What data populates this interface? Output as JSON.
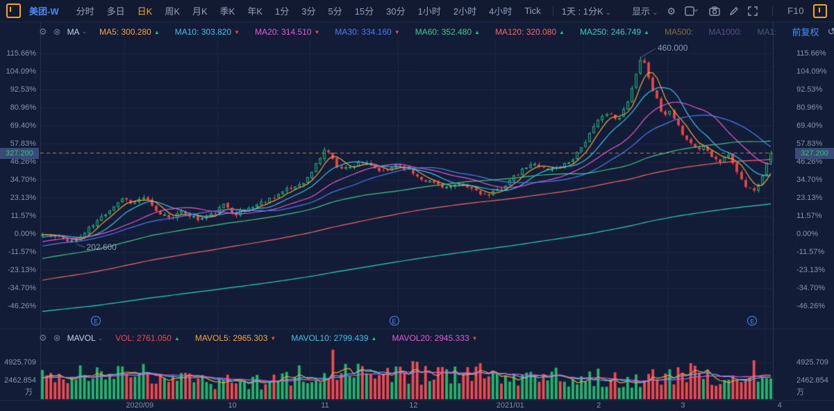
{
  "toolbar": {
    "symbol": "美团-W",
    "periods": [
      "分时",
      "多日",
      "日K",
      "周K",
      "月K",
      "季K",
      "年K",
      "1分",
      "3分",
      "5分",
      "15分",
      "30分",
      "1小时",
      "2小时",
      "4小时",
      "Tick"
    ],
    "active_period": "日K",
    "combo_label": "1天 : 1分K",
    "display_label": "显示",
    "f10_label": "F10"
  },
  "icons": {
    "window_icon": "orange-candle-window",
    "display_dropdown": "chevron-down",
    "settings": "gear",
    "layout": "square-chevron",
    "screenshot": "camera",
    "draw": "pencil",
    "fullscreen": "expand-arrows",
    "undo": "circular-arrow",
    "zoom_out": "minus-circle",
    "zoom_in": "plus-circle",
    "legend_settings": "gear",
    "legend_close": "circle-x",
    "earnings": "circled-E"
  },
  "ma_bar": {
    "name": "MA",
    "items": [
      {
        "label": "MA5",
        "value": "300.280",
        "color": "#f3a341",
        "dir": "up"
      },
      {
        "label": "MA10",
        "value": "303.820",
        "color": "#3fc0e8",
        "dir": "down"
      },
      {
        "label": "MA20",
        "value": "314.510",
        "color": "#e35ad6",
        "dir": "down"
      },
      {
        "label": "MA30",
        "value": "334.160",
        "color": "#4a7df0",
        "dir": "down"
      },
      {
        "label": "MA60",
        "value": "352.480",
        "color": "#3fc98c",
        "dir": "up"
      },
      {
        "label": "MA120",
        "value": "320.080",
        "color": "#ef6a6a",
        "dir": "up"
      },
      {
        "label": "MA250",
        "value": "246.749",
        "color": "#2ed0c4",
        "dir": "up"
      },
      {
        "label": "MA500:",
        "value": "",
        "color": "#7d7045",
        "dir": ""
      },
      {
        "label": "MA1000:",
        "value": "",
        "color": "#585089",
        "dir": ""
      },
      {
        "label": "MA1:",
        "value": "",
        "color": "#49567a",
        "dir": ""
      }
    ],
    "adjust_label": "前复权"
  },
  "vol_bar": {
    "name": "MAVOL",
    "items": [
      {
        "label": "VOL",
        "value": "2761.050",
        "color": "#ef4a4e",
        "dir": "up"
      },
      {
        "label": "MAVOL5",
        "value": "2965.303",
        "color": "#f3a341",
        "dir": "down"
      },
      {
        "label": "MAVOL10",
        "value": "2799.439",
        "color": "#3fc0e8",
        "dir": "up"
      },
      {
        "label": "MAVOL20",
        "value": "2945.333",
        "color": "#e35ad6",
        "dir": "down"
      }
    ]
  },
  "main_axis": {
    "labels": [
      "115.66%",
      "104.09%",
      "92.53%",
      "80.96%",
      "69.40%",
      "57.83%",
      "46.26%",
      "34.70%",
      "23.13%",
      "11.57%",
      "0.00%",
      "-11.57%",
      "-23.13%",
      "-34.70%",
      "-46.26%"
    ],
    "pcts": [
      115.66,
      104.09,
      92.53,
      80.96,
      69.4,
      57.83,
      46.26,
      34.7,
      23.13,
      11.57,
      0.0,
      -11.57,
      -23.13,
      -34.7,
      -46.26
    ],
    "price_tag": "327.200",
    "high_label": "460.000",
    "low_label": "202.600",
    "earnings_glyph": "E"
  },
  "vol_axis": {
    "labels": [
      "4925.709",
      "2462.854"
    ],
    "values": [
      4925.709,
      2462.854
    ],
    "unit": "万"
  },
  "x_axis": {
    "labels": [
      "2020/09",
      "10",
      "11",
      "12",
      "2021/01",
      "2",
      "3",
      "4"
    ]
  },
  "colors": {
    "background": "#131c36",
    "toolbar_bg": "#111a31",
    "grid": "#1b2646",
    "border": "#27335a",
    "up": "#22c07e",
    "down": "#ea4749",
    "axis_text": "#8893b0",
    "accent_orange": "#f5a623",
    "accent_blue": "#4d8af0",
    "price_line_dash": "#c08347",
    "tag_bg": "#3b4b77"
  },
  "chart_data": {
    "type": "candlestick",
    "title": "美团-W 日K 前复权",
    "base_price": 215.3,
    "last_price": 327.2,
    "last_change_pct": 52.0,
    "high_price": 460.0,
    "high_pct": 113.66,
    "low_price": 202.6,
    "low_pct": -5.9,
    "n": 174,
    "seed": 11,
    "start_date": "2020-08-04",
    "noise_pct": 1.5,
    "close_anchors_pct": [
      [
        0,
        0
      ],
      [
        0.02,
        -2.5
      ],
      [
        0.045,
        -4.5
      ],
      [
        0.07,
        6
      ],
      [
        0.095,
        17
      ],
      [
        0.11,
        23
      ],
      [
        0.125,
        20
      ],
      [
        0.14,
        24
      ],
      [
        0.155,
        14
      ],
      [
        0.175,
        11
      ],
      [
        0.195,
        14
      ],
      [
        0.215,
        9
      ],
      [
        0.235,
        13
      ],
      [
        0.25,
        19
      ],
      [
        0.265,
        13
      ],
      [
        0.285,
        17
      ],
      [
        0.305,
        21
      ],
      [
        0.325,
        26
      ],
      [
        0.345,
        30
      ],
      [
        0.365,
        36
      ],
      [
        0.38,
        48
      ],
      [
        0.39,
        56
      ],
      [
        0.402,
        44
      ],
      [
        0.42,
        42
      ],
      [
        0.435,
        47
      ],
      [
        0.455,
        42
      ],
      [
        0.47,
        39
      ],
      [
        0.485,
        45
      ],
      [
        0.5,
        42
      ],
      [
        0.515,
        37
      ],
      [
        0.535,
        33
      ],
      [
        0.555,
        30
      ],
      [
        0.575,
        31
      ],
      [
        0.595,
        28
      ],
      [
        0.612,
        24
      ],
      [
        0.63,
        30
      ],
      [
        0.65,
        37
      ],
      [
        0.665,
        43
      ],
      [
        0.68,
        45
      ],
      [
        0.695,
        41
      ],
      [
        0.71,
        43
      ],
      [
        0.725,
        47
      ],
      [
        0.74,
        56
      ],
      [
        0.755,
        66
      ],
      [
        0.77,
        78
      ],
      [
        0.78,
        76
      ],
      [
        0.79,
        72
      ],
      [
        0.8,
        82
      ],
      [
        0.812,
        97
      ],
      [
        0.82,
        112
      ],
      [
        0.828,
        108
      ],
      [
        0.836,
        96
      ],
      [
        0.845,
        84
      ],
      [
        0.853,
        74
      ],
      [
        0.86,
        79
      ],
      [
        0.87,
        70
      ],
      [
        0.88,
        64
      ],
      [
        0.89,
        58
      ],
      [
        0.9,
        54
      ],
      [
        0.91,
        57
      ],
      [
        0.92,
        50
      ],
      [
        0.93,
        46
      ],
      [
        0.94,
        52
      ],
      [
        0.95,
        44
      ],
      [
        0.958,
        36
      ],
      [
        0.966,
        30
      ],
      [
        0.974,
        27
      ],
      [
        0.982,
        31
      ],
      [
        0.99,
        40
      ],
      [
        1,
        52
      ]
    ],
    "peak_frac": 0.82,
    "low_frac": 0.045,
    "prehistory": {
      "count": 250,
      "start_ratio": 0.25
    },
    "ma_lines": [
      {
        "period": 5,
        "color": "#f3a341"
      },
      {
        "period": 10,
        "color": "#3fc0e8"
      },
      {
        "period": 20,
        "color": "#e35ad6"
      },
      {
        "period": 30,
        "color": "#4a7df0"
      },
      {
        "period": 60,
        "color": "#3fc98c"
      },
      {
        "period": 120,
        "color": "#ef6a6a"
      },
      {
        "period": 250,
        "color": "#2ed0c4"
      }
    ],
    "volume": {
      "unit": "万",
      "last": 2761.05,
      "anchors": [
        [
          0,
          2900
        ],
        [
          0.05,
          3100
        ],
        [
          0.1,
          3300
        ],
        [
          0.14,
          3600
        ],
        [
          0.18,
          2700
        ],
        [
          0.22,
          2300
        ],
        [
          0.26,
          2500
        ],
        [
          0.3,
          2300
        ],
        [
          0.34,
          2900
        ],
        [
          0.38,
          3500
        ],
        [
          0.401,
          4600
        ],
        [
          0.44,
          3300
        ],
        [
          0.48,
          3000
        ],
        [
          0.512,
          3600
        ],
        [
          0.55,
          2900
        ],
        [
          0.6,
          3300
        ],
        [
          0.64,
          2600
        ],
        [
          0.68,
          2700
        ],
        [
          0.72,
          2500
        ],
        [
          0.755,
          3100
        ],
        [
          0.8,
          2700
        ],
        [
          0.84,
          2500
        ],
        [
          0.888,
          3300
        ],
        [
          0.93,
          2400
        ],
        [
          0.975,
          3400
        ],
        [
          1,
          2850
        ]
      ],
      "spikes": [
        [
          0.141,
          4700
        ],
        [
          0.351,
          4500
        ],
        [
          0.396,
          5400
        ],
        [
          0.401,
          6600
        ],
        [
          0.438,
          4400
        ],
        [
          0.512,
          5000
        ],
        [
          0.552,
          4300
        ],
        [
          0.604,
          4800
        ],
        [
          0.703,
          4200
        ],
        [
          0.836,
          4000
        ],
        [
          0.888,
          4800
        ],
        [
          0.978,
          5200
        ]
      ],
      "mavol_lines": [
        {
          "period": 5,
          "color": "#f3a341"
        },
        {
          "period": 10,
          "color": "#3fc0e8"
        },
        {
          "period": 20,
          "color": "#e35ad6"
        }
      ]
    },
    "earnings_fracs": [
      0.076,
      0.483,
      0.972
    ],
    "vol_gridlines": [
      2462.854,
      4925.709
    ]
  }
}
